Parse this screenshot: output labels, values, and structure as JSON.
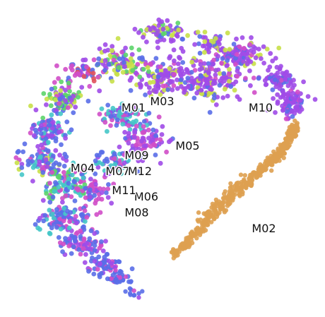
{
  "chart_data": {
    "type": "scatter",
    "title": "",
    "xlabel": "",
    "ylabel": "",
    "axes_visible": false,
    "grid": false,
    "legend": "none",
    "series": [
      {
        "key": "violet",
        "color": "#a04be8"
      },
      {
        "key": "blue",
        "color": "#5a6ee8"
      },
      {
        "key": "magenta",
        "color": "#d04ec8"
      },
      {
        "key": "teal",
        "color": "#45c7c8"
      },
      {
        "key": "green",
        "color": "#5cd46a"
      },
      {
        "key": "lime",
        "color": "#c8e048"
      },
      {
        "key": "red",
        "color": "#e0525e"
      },
      {
        "key": "orange",
        "color": "#dea050"
      }
    ],
    "clusters": [
      {
        "label": "M01",
        "x": 3.2,
        "y": 5.7
      },
      {
        "label": "M02",
        "x": 7.3,
        "y": 1.9
      },
      {
        "label": "M03",
        "x": 4.1,
        "y": 5.9
      },
      {
        "label": "M04",
        "x": 1.6,
        "y": 3.8
      },
      {
        "label": "M05",
        "x": 4.9,
        "y": 4.5
      },
      {
        "label": "M06",
        "x": 3.6,
        "y": 2.9
      },
      {
        "label": "M07",
        "x": 2.7,
        "y": 3.7
      },
      {
        "label": "M08",
        "x": 3.3,
        "y": 2.4
      },
      {
        "label": "M09",
        "x": 3.3,
        "y": 4.2
      },
      {
        "label": "M10",
        "x": 7.2,
        "y": 5.7
      },
      {
        "label": "M11",
        "x": 2.9,
        "y": 3.1
      },
      {
        "label": "M12",
        "x": 3.4,
        "y": 3.7
      }
    ]
  }
}
